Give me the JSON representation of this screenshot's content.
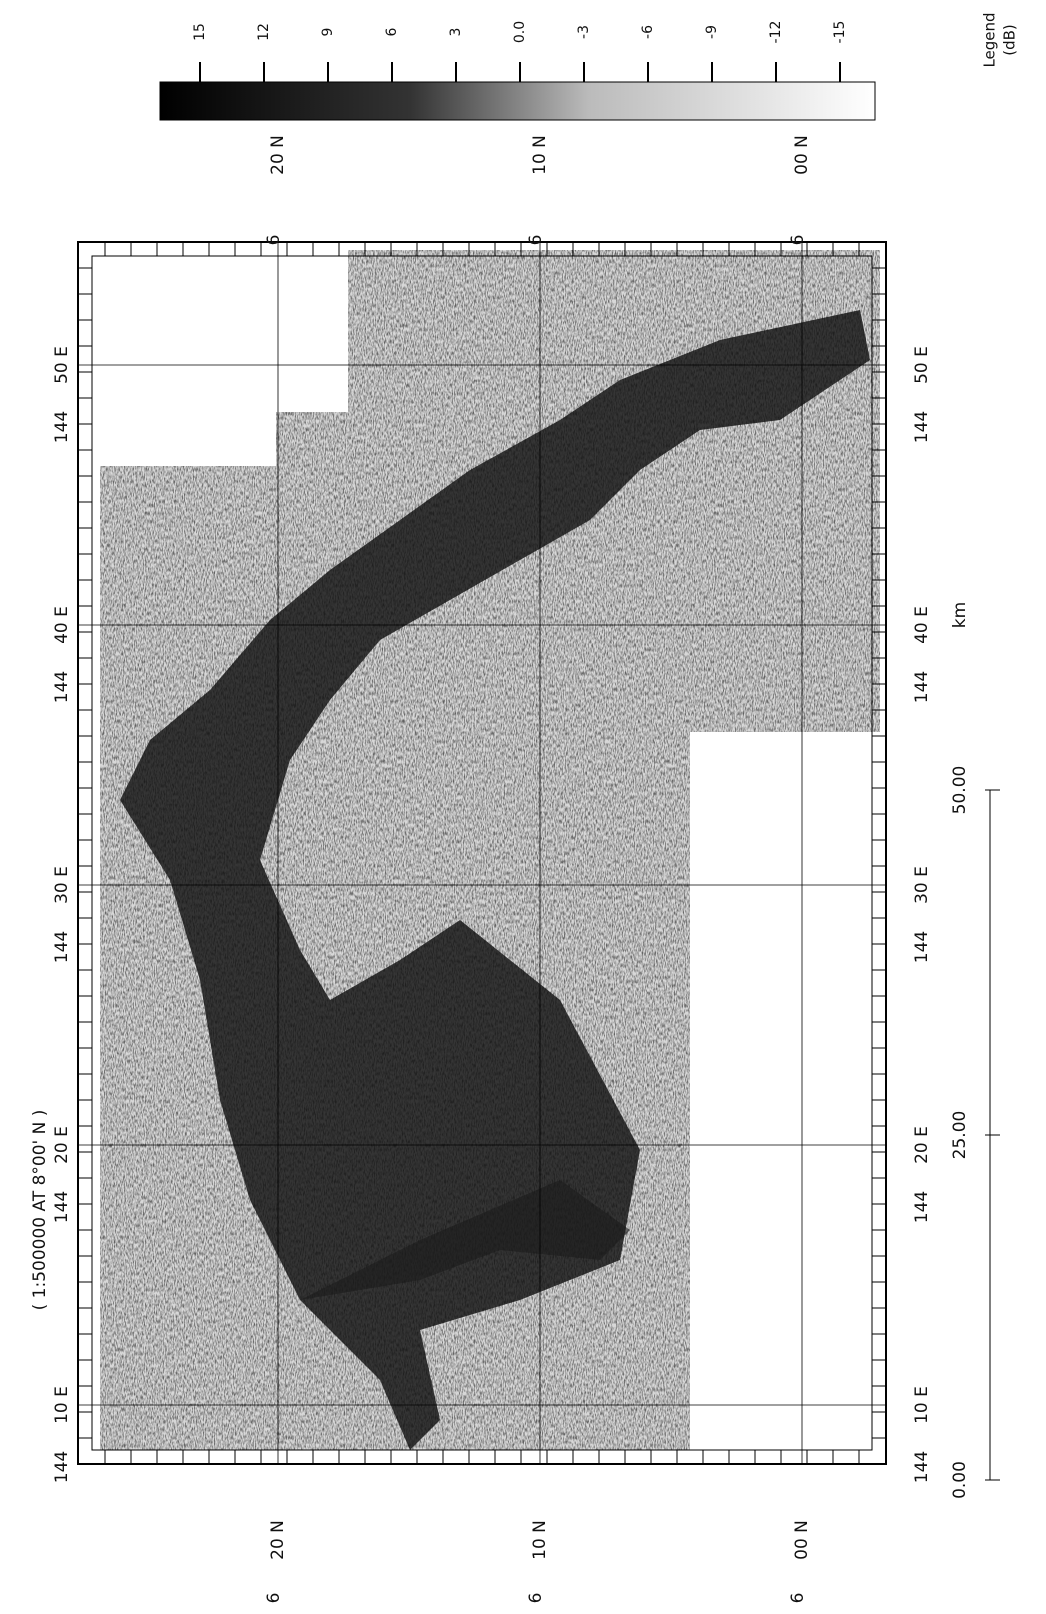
{
  "title": "( 1:500000 AT 8°00' N )",
  "legend": {
    "title": "Legend",
    "unit": "(dB)",
    "ticks": [
      "15",
      "12",
      "9",
      "6",
      "3",
      "0.0",
      "-3",
      "-6",
      "-9",
      "-12",
      "-15"
    ]
  },
  "longitudes": [
    {
      "deg": "144",
      "min": "10 E"
    },
    {
      "deg": "144",
      "min": "20 E"
    },
    {
      "deg": "144",
      "min": "30 E"
    },
    {
      "deg": "144",
      "min": "40 E"
    },
    {
      "deg": "144",
      "min": "50 E"
    }
  ],
  "latitudes": [
    {
      "deg": "6",
      "min": "20 N"
    },
    {
      "deg": "6",
      "min": "10 N"
    },
    {
      "deg": "6",
      "min": "00 N"
    }
  ],
  "scale_bar": {
    "labels": [
      "0.00",
      "25.00",
      "50.00"
    ],
    "unit": "km"
  }
}
